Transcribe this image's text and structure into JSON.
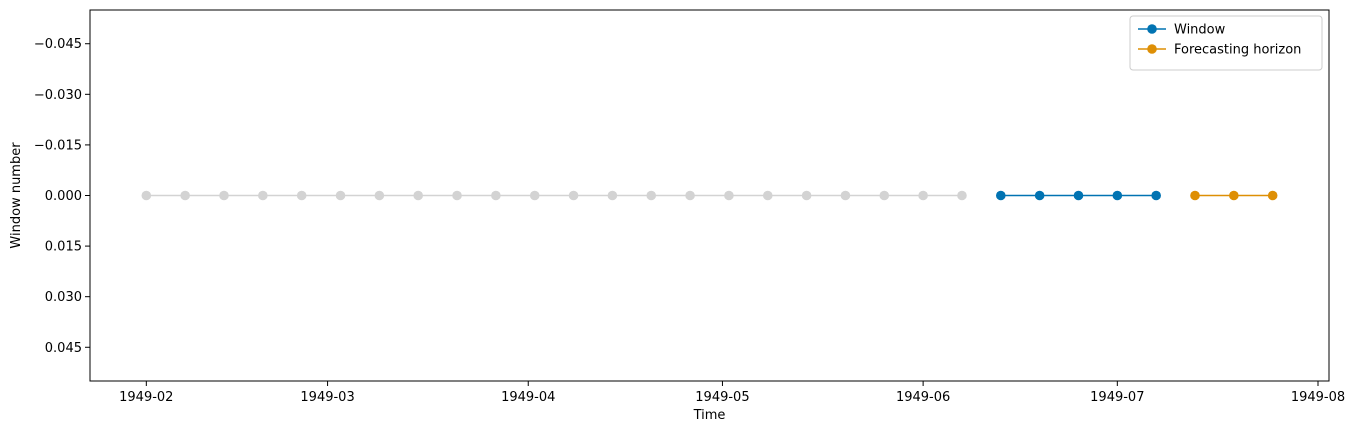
{
  "chart_data": {
    "type": "line",
    "xlabel": "Time",
    "ylabel": "Window number",
    "x_ticks": [
      "1949-02",
      "1949-03",
      "1949-04",
      "1949-05",
      "1949-06",
      "1949-07",
      "1949-08"
    ],
    "y_ticks": [
      "−0.045",
      "−0.030",
      "−0.015",
      "0.000",
      "0.015",
      "0.030",
      "0.045"
    ],
    "y_tick_values": [
      -0.045,
      -0.03,
      -0.015,
      0.0,
      0.015,
      0.03,
      0.045
    ],
    "ylim": [
      0.055,
      -0.055
    ],
    "y_inverted": true,
    "grid": false,
    "legend_position": "top-right",
    "series": [
      {
        "name": "",
        "color": "#d3d3d3",
        "points": [
          {
            "x": "1949-02-01",
            "y": 0
          },
          {
            "x": "1949-02-07",
            "y": 0
          },
          {
            "x": "1949-02-13",
            "y": 0
          },
          {
            "x": "1949-02-19",
            "y": 0
          },
          {
            "x": "1949-02-25",
            "y": 0
          },
          {
            "x": "1949-03-03",
            "y": 0
          },
          {
            "x": "1949-03-09",
            "y": 0
          },
          {
            "x": "1949-03-15",
            "y": 0
          },
          {
            "x": "1949-03-21",
            "y": 0
          },
          {
            "x": "1949-03-27",
            "y": 0
          },
          {
            "x": "1949-04-02",
            "y": 0
          },
          {
            "x": "1949-04-08",
            "y": 0
          },
          {
            "x": "1949-04-14",
            "y": 0
          },
          {
            "x": "1949-04-20",
            "y": 0
          },
          {
            "x": "1949-04-26",
            "y": 0
          },
          {
            "x": "1949-05-02",
            "y": 0
          },
          {
            "x": "1949-05-08",
            "y": 0
          },
          {
            "x": "1949-05-14",
            "y": 0
          },
          {
            "x": "1949-05-20",
            "y": 0
          },
          {
            "x": "1949-05-26",
            "y": 0
          },
          {
            "x": "1949-06-01",
            "y": 0
          },
          {
            "x": "1949-06-07",
            "y": 0
          }
        ]
      },
      {
        "name": "Window",
        "color": "#0173b2",
        "points": [
          {
            "x": "1949-06-13",
            "y": 0
          },
          {
            "x": "1949-06-19",
            "y": 0
          },
          {
            "x": "1949-06-25",
            "y": 0
          },
          {
            "x": "1949-07-01",
            "y": 0
          },
          {
            "x": "1949-07-07",
            "y": 0
          }
        ]
      },
      {
        "name": "Forecasting horizon",
        "color": "#de8f05",
        "points": [
          {
            "x": "1949-07-13",
            "y": 0
          },
          {
            "x": "1949-07-19",
            "y": 0
          },
          {
            "x": "1949-07-25",
            "y": 0
          }
        ]
      }
    ]
  }
}
